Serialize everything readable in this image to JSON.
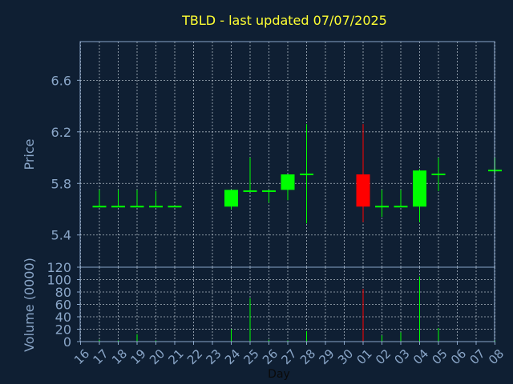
{
  "chart_data": {
    "type": "candlestick",
    "title": "TBLD - last updated 07/07/2025",
    "price_panel": {
      "ylabel": "Price",
      "ylim": [
        5.15,
        6.9
      ],
      "yticks": [
        5.4,
        5.8,
        6.2,
        6.6
      ],
      "ytick_labels": [
        "5.4",
        "5.8",
        "6.2",
        "6.6"
      ]
    },
    "volume_panel": {
      "ylabel": "Volume (0000)",
      "ylim": [
        0,
        120
      ],
      "yticks": [
        0,
        20,
        40,
        60,
        80,
        100,
        120
      ],
      "ytick_labels": [
        "0",
        "20",
        "40",
        "60",
        "80",
        "100",
        "120"
      ]
    },
    "xlabel": "Day",
    "days": [
      "16",
      "17",
      "18",
      "19",
      "20",
      "21",
      "22",
      "23",
      "24",
      "25",
      "26",
      "27",
      "28",
      "29",
      "30",
      "01",
      "02",
      "03",
      "04",
      "05",
      "06",
      "07",
      "08"
    ],
    "candles": [
      {
        "day": "17",
        "open": 5.62,
        "high": 5.75,
        "low": 5.62,
        "close": 5.62,
        "volume": 3
      },
      {
        "day": "18",
        "open": 5.62,
        "high": 5.75,
        "low": 5.62,
        "close": 5.62,
        "volume": 2
      },
      {
        "day": "19",
        "open": 5.62,
        "high": 5.75,
        "low": 5.62,
        "close": 5.62,
        "volume": 12
      },
      {
        "day": "20",
        "open": 5.62,
        "high": 5.74,
        "low": 5.62,
        "close": 5.62,
        "volume": 2
      },
      {
        "day": "21",
        "open": 5.62,
        "high": 5.62,
        "low": 5.62,
        "close": 5.62,
        "volume": 0
      },
      {
        "day": "24",
        "open": 5.62,
        "high": 5.75,
        "low": 5.6,
        "close": 5.75,
        "volume": 20
      },
      {
        "day": "25",
        "open": 5.74,
        "high": 6.0,
        "low": 5.74,
        "close": 5.74,
        "volume": 70
      },
      {
        "day": "26",
        "open": 5.74,
        "high": 5.75,
        "low": 5.65,
        "close": 5.74,
        "volume": 3
      },
      {
        "day": "27",
        "open": 5.75,
        "high": 5.87,
        "low": 5.67,
        "close": 5.87,
        "volume": 2
      },
      {
        "day": "28",
        "open": 5.87,
        "high": 6.26,
        "low": 5.49,
        "close": 5.87,
        "volume": 17
      },
      {
        "day": "01",
        "open": 5.87,
        "high": 6.26,
        "low": 5.5,
        "close": 5.62,
        "volume": 85
      },
      {
        "day": "02",
        "open": 5.62,
        "high": 5.75,
        "low": 5.54,
        "close": 5.62,
        "volume": 10
      },
      {
        "day": "03",
        "open": 5.62,
        "high": 5.75,
        "low": 5.62,
        "close": 5.62,
        "volume": 15
      },
      {
        "day": "04",
        "open": 5.62,
        "high": 5.91,
        "low": 5.5,
        "close": 5.9,
        "volume": 105
      },
      {
        "day": "05",
        "open": 5.87,
        "high": 6.0,
        "low": 5.74,
        "close": 5.87,
        "volume": 22
      },
      {
        "day": "08",
        "open": 5.9,
        "high": 6.0,
        "low": 5.88,
        "close": 5.9,
        "volume": 2
      }
    ],
    "grid": true,
    "colors": {
      "background": "#0f1f33",
      "frame": "#8aa6c8",
      "grid": "#c8d2dc",
      "up": "#00ff00",
      "down": "#ff0000",
      "title": "#ffff33",
      "axis_text": "#8aa6c8"
    }
  }
}
